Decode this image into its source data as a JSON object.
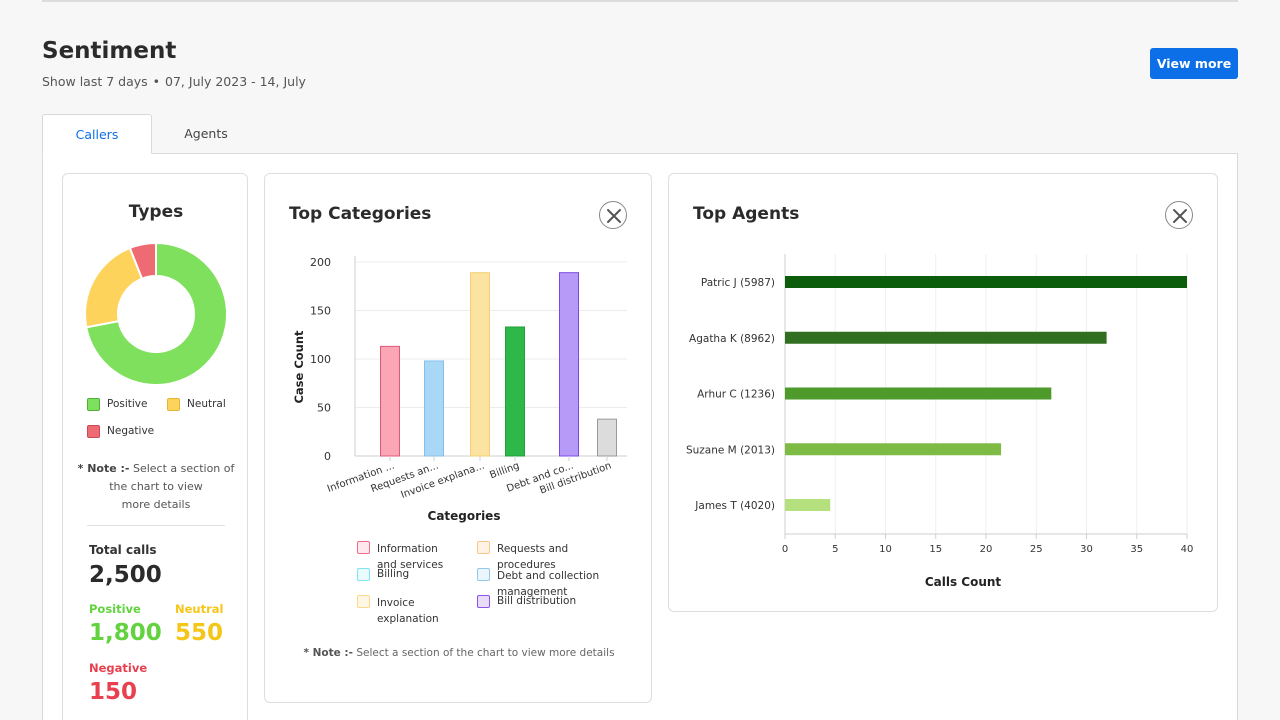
{
  "header": {
    "title": "Sentiment",
    "period": "Show last 7 days",
    "range": "07, July 2023 - 14, July",
    "view_more": "View more"
  },
  "tabs": [
    {
      "label": "Callers",
      "active": true
    },
    {
      "label": "Agents",
      "active": false
    }
  ],
  "types": {
    "title": "Types",
    "legend": [
      {
        "label": "Positive",
        "color": "#7ee05c"
      },
      {
        "label": "Neutral",
        "color": "#fdd35c"
      },
      {
        "label": "Negative",
        "color": "#ef6b73"
      }
    ],
    "note_prefix": "* Note :-",
    "note_text1": "Select a section of",
    "note_text2": "the chart to view",
    "note_text3": "more details",
    "total_label": "Total calls",
    "total_value": "2,500",
    "positive_label": "Positive",
    "positive_value": "1,800",
    "neutral_label": "Neutral",
    "neutral_value": "550",
    "negative_label": "Negative",
    "negative_value": "150"
  },
  "top_categories": {
    "title": "Top Categories",
    "legend": [
      {
        "line1": "Information",
        "line2": "and services",
        "color": "#f06b86",
        "fill": "#fde8ee"
      },
      {
        "line1": "Requests and",
        "line2": "procedures",
        "color": "#fcc58a",
        "fill": "#fff3e6"
      },
      {
        "line1": "Billing",
        "line2": "",
        "color": "#7fe3f2",
        "fill": "#e9fbfd"
      },
      {
        "line1": "Debt and collection",
        "line2": "management",
        "color": "#90c8ee",
        "fill": "#eaf5fd"
      },
      {
        "line1": "Invoice",
        "line2": "explanation",
        "color": "#fcd98a",
        "fill": "#fff7e3"
      },
      {
        "line1": "Bill distribution",
        "line2": "",
        "color": "#8b55e8",
        "fill": "#e9dcfb"
      }
    ],
    "note_prefix": "* Note :-",
    "note_text": "Select a section of the chart to view more details"
  },
  "top_agents": {
    "title": "Top Agents"
  },
  "chart_data": [
    {
      "type": "pie",
      "title": "Types",
      "categories": [
        "Positive",
        "Neutral",
        "Negative"
      ],
      "values": [
        1800,
        550,
        150
      ],
      "colors": [
        "#7ee05c",
        "#fdd35c",
        "#ef6b73"
      ]
    },
    {
      "type": "bar",
      "title": "Top Categories",
      "xlabel": "Categories",
      "ylabel": "Case Count",
      "ylim": [
        0,
        200
      ],
      "yticks": [
        0,
        50,
        100,
        150,
        200
      ],
      "categories": [
        "Information ...",
        "Requests an...",
        "Invoice explana...",
        "Billing",
        "Debt and co...",
        "Bill distribution"
      ],
      "values": [
        113,
        98,
        189,
        133,
        189,
        38
      ],
      "colors": [
        {
          "fill": "#fba6b5",
          "stroke": "#e05a78"
        },
        {
          "fill": "#a9d8f7",
          "stroke": "#86c0ea"
        },
        {
          "fill": "#fde3a1",
          "stroke": "#f3cf72"
        },
        {
          "fill": "#2fb84a",
          "stroke": "#22a03b"
        },
        {
          "fill": "#b799f7",
          "stroke": "#7b49e0"
        },
        {
          "fill": "#dcdcdc",
          "stroke": "#999999"
        }
      ],
      "grid": true
    },
    {
      "type": "bar",
      "orientation": "horizontal",
      "title": "Top Agents",
      "xlabel": "Calls Count",
      "xlim": [
        0,
        40
      ],
      "xticks": [
        0,
        5,
        10,
        15,
        20,
        25,
        30,
        35,
        40
      ],
      "categories": [
        "Patric J (5987)",
        "Agatha K (8962)",
        "Arhur C (1236)",
        "Suzane M (2013)",
        "James T (4020)"
      ],
      "values": [
        40,
        32,
        26.5,
        21.5,
        4.5
      ],
      "colors": [
        "#0b5c0b",
        "#2f6f1f",
        "#4e9a2b",
        "#7dbb45",
        "#b5e07e"
      ],
      "grid": true
    }
  ]
}
